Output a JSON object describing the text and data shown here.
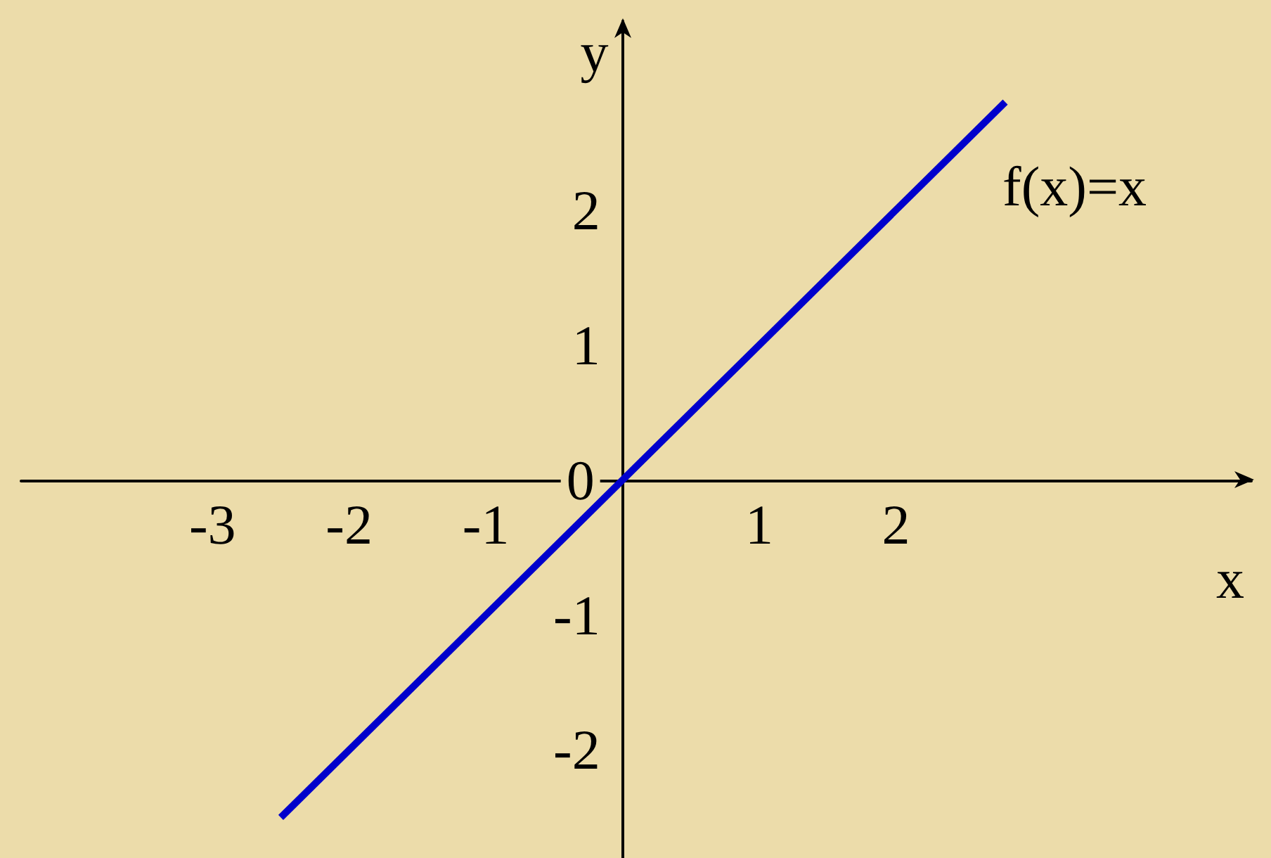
{
  "chart_data": {
    "type": "line",
    "xlabel": "x",
    "ylabel": "y",
    "x": [
      -2.5,
      2.8
    ],
    "series": [
      {
        "name": "f(x)=x",
        "color": "#0000cc",
        "values": [
          -2.5,
          2.8
        ]
      }
    ],
    "xlim": [
      -4.4,
      4.6
    ],
    "xticks": [
      -3,
      -2,
      -1,
      1,
      2
    ],
    "ylim": [
      -2.8,
      3.4
    ],
    "yticks": [
      -2,
      -1,
      0,
      1,
      2
    ],
    "grid": false,
    "legend": false,
    "marker": "none",
    "line_style": "solid"
  }
}
